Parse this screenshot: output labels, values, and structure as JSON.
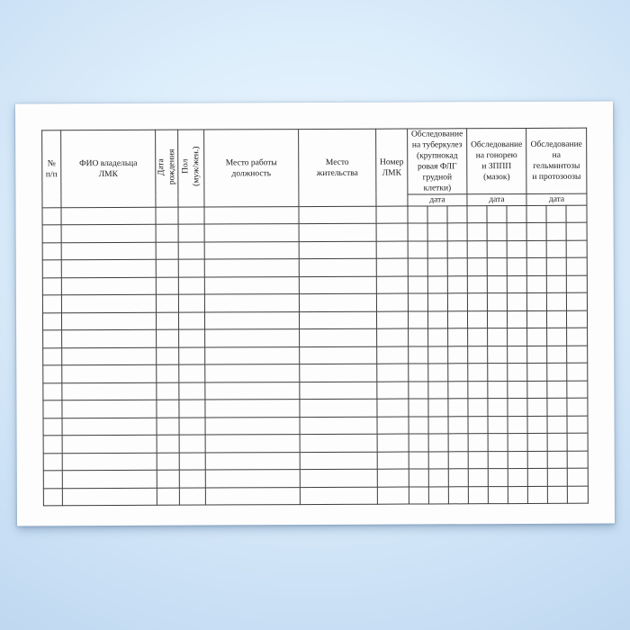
{
  "colors": {
    "background_center": "#eef6fe",
    "background_edge": "#bfd8f0",
    "paper": "#fdfdfe",
    "table_border": "#3d3d3d",
    "text": "#1d1d1d"
  },
  "table": {
    "columns": [
      {
        "label": "№\nп/п",
        "vertical": false
      },
      {
        "label": "ФИО владельца\nЛМК",
        "vertical": false
      },
      {
        "label": "Дата\nрождения",
        "vertical": true
      },
      {
        "label": "Пол\n(муж/жен.)",
        "vertical": true
      },
      {
        "label": "Место работы\nдолжность",
        "vertical": false
      },
      {
        "label": "Место\nжительства",
        "vertical": false
      },
      {
        "label": "Номер\nЛМК",
        "vertical": false
      }
    ],
    "exam_groups": [
      {
        "label": "Обследование\nна туберкулез\n(крупнокад\nровая ФЛГ\nгрудной клетки)",
        "sub_label": "дата",
        "sub_columns": 3
      },
      {
        "label": "Обследование\nна гонорею\nи ЗППП\n(мазок)",
        "sub_label": "дата",
        "sub_columns": 3
      },
      {
        "label": "Обследование\nна\nгельминтозы\nи протозоозы",
        "sub_label": "дата",
        "sub_columns": 3
      }
    ],
    "row_count": 17,
    "cell_values": []
  }
}
